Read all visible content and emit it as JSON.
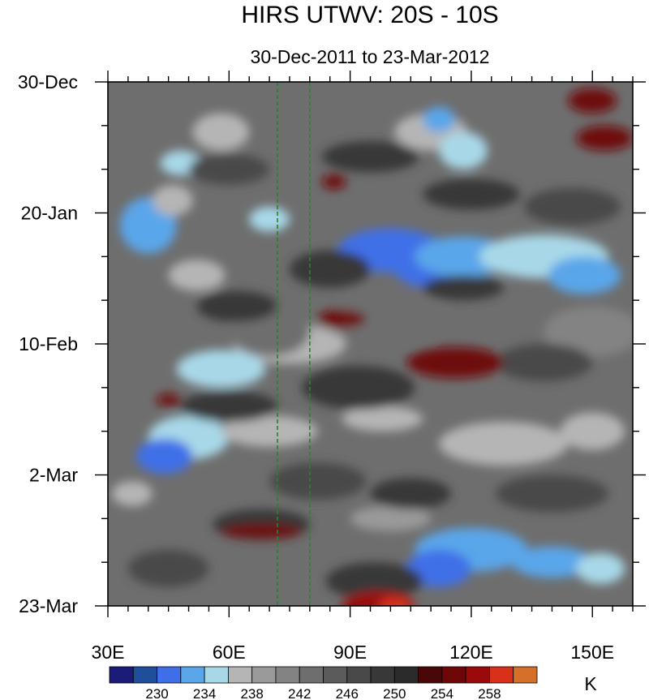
{
  "chart_data": {
    "type": "heatmap",
    "title": "HIRS UTWV: 20S - 10S",
    "subtitle": "30-Dec-2011 to 23-Mar-2012",
    "x_axis": {
      "range": [
        30,
        160
      ],
      "units": "degrees East longitude",
      "ticks": [
        30,
        60,
        90,
        120,
        150
      ],
      "tick_labels": [
        "30E",
        "60E",
        "90E",
        "120E",
        "150E"
      ]
    },
    "y_axis": {
      "range_days": [
        0,
        84
      ],
      "direction": "time increases downward",
      "ticks": [
        0,
        21,
        42,
        63,
        84
      ],
      "tick_labels": [
        "30-Dec",
        "20-Jan",
        "10-Feb",
        "2-Mar",
        "23-Mar"
      ]
    },
    "reference_lines": [
      {
        "lon": 72,
        "style": "dashed",
        "color": "#1f8a1f"
      },
      {
        "lon": 80,
        "style": "dashed",
        "color": "#1f8a1f"
      }
    ],
    "colorbar": {
      "units": "K",
      "levels": [
        228,
        230,
        232,
        234,
        236,
        238,
        240,
        242,
        244,
        246,
        248,
        250,
        252,
        254,
        256,
        258,
        260
      ],
      "labeled_levels": [
        "230",
        "234",
        "238",
        "242",
        "246",
        "250",
        "254",
        "258"
      ],
      "colors": [
        "#1c1c78",
        "#1f4f9a",
        "#3f6fe8",
        "#5aa6ea",
        "#a8d8e8",
        "#b5b5b5",
        "#9a9a9a",
        "#838383",
        "#6e6e6e",
        "#5b5b5b",
        "#494949",
        "#383838",
        "#2b2b2b",
        "#4a0707",
        "#6e0808",
        "#9a0a0a",
        "#d9301a",
        "#d4702a"
      ]
    }
  }
}
